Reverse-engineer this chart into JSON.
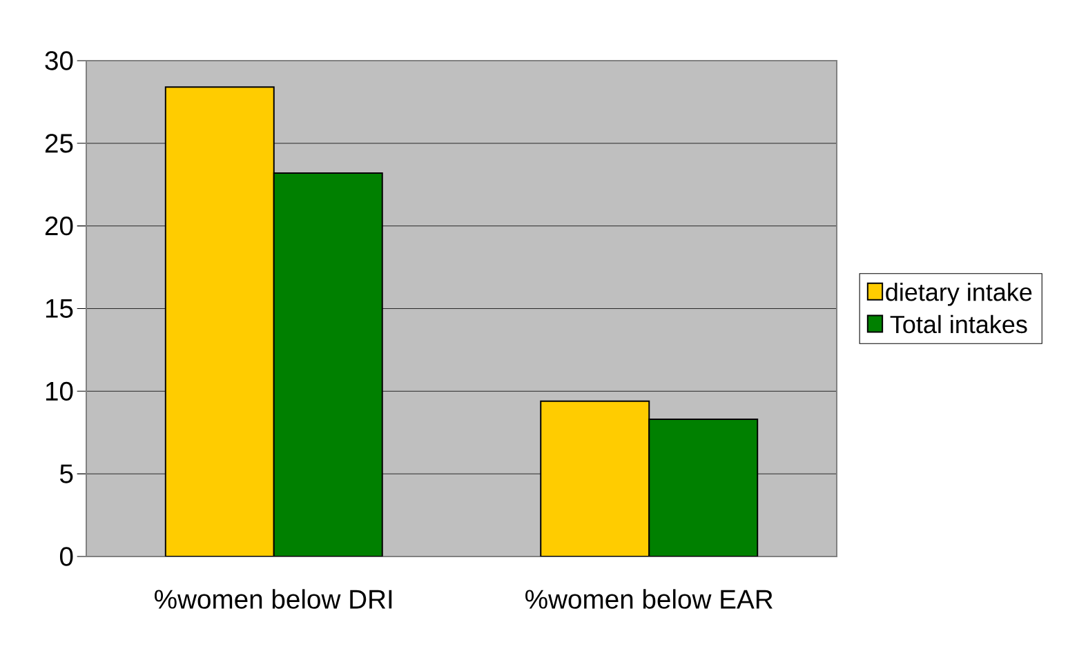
{
  "chart_data": {
    "type": "bar",
    "categories": [
      "%women below DRI",
      "%women below EAR"
    ],
    "series": [
      {
        "name": "dietary intake",
        "color": "#ffcc00",
        "values": [
          28.4,
          9.4
        ]
      },
      {
        "name": "Total intakes",
        "color": "#008000",
        "values": [
          23.2,
          8.3
        ]
      }
    ],
    "ylim": [
      0,
      30
    ],
    "yticks": [
      0,
      5,
      10,
      15,
      20,
      25,
      30
    ],
    "grid": "y",
    "legend": "right"
  }
}
